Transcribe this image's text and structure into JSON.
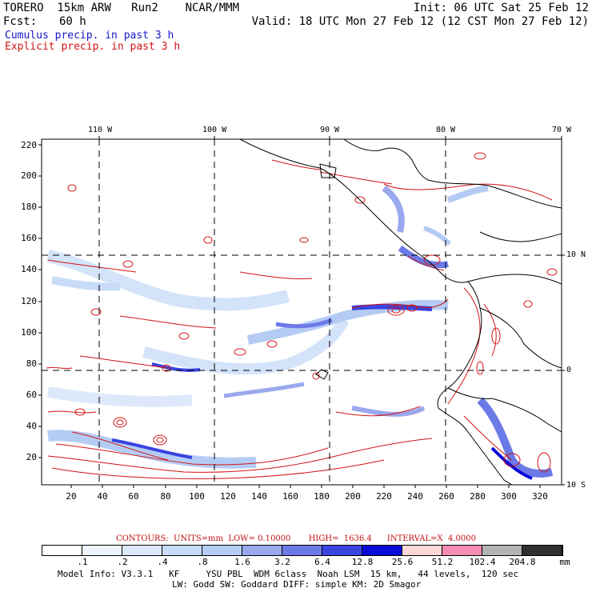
{
  "header": {
    "model": "TORERO  15km ARW   Run2    NCAR/MMM",
    "init": "Init: 06 UTC Sat 25 Feb 12",
    "fcst_label": "Fcst:",
    "fcst_hours": "60 h",
    "valid": "Valid: 18 UTC Mon 27 Feb 12 (12 CST Mon 27 Feb 12)",
    "legend_cumulus": "Cumulus precip. in past 3 h",
    "legend_explicit": "Explicit precip. in past 3 h"
  },
  "colors": {
    "cumulus": "#1515c8",
    "explicit": "#d21414",
    "land": "#000000"
  },
  "map": {
    "lon_labels": [
      "110 W",
      "100 W",
      "90 W",
      "80 W",
      "70 W"
    ],
    "lat_labels": [
      "10 N",
      "0",
      "10 S"
    ],
    "x_ticks": [
      "20",
      "40",
      "60",
      "80",
      "100",
      "120",
      "140",
      "160",
      "180",
      "200",
      "220",
      "240",
      "260",
      "280",
      "300",
      "320"
    ],
    "y_ticks": [
      "220",
      "200",
      "180",
      "160",
      "140",
      "120",
      "100",
      "80",
      "60",
      "40",
      "20"
    ],
    "lon_values": [
      -110,
      -100,
      -90,
      -80,
      -70
    ],
    "lat_values": [
      10,
      0,
      -10
    ],
    "x_range": [
      0,
      334
    ],
    "y_range": [
      0,
      224
    ]
  },
  "contours": {
    "label": "CONTOURS:",
    "units": "UNITS=mm",
    "low": "LOW= 0.10000",
    "high": "HIGH=  1636.4",
    "interval": "INTERVAL=X  4.0000"
  },
  "colorbar": {
    "units": "mm",
    "levels": [
      ".1",
      ".2",
      ".4",
      ".8",
      "1.6",
      "3.2",
      "6.4",
      "12.8",
      "25.6",
      "51.2",
      "102.4",
      "204.8"
    ],
    "colors": [
      "#ffffff",
      "#eef4fc",
      "#dde9fb",
      "#c8dcf8",
      "#b4ccf4",
      "#9aa8ee",
      "#6c7ae8",
      "#3a44e0",
      "#0a0ad8",
      "#fcd6d6",
      "#f48cb4",
      "#b4b4b4",
      "#303030",
      "#d8a0f0"
    ]
  },
  "footer": {
    "line1": "Model Info: V3.3.1   KF     YSU PBL  WDM 6class  Noah LSM  15 km,   44 levels,  120 sec",
    "line2": "LW: Godd SW: Goddard DIFF: simple KM: 2D Smagor"
  }
}
